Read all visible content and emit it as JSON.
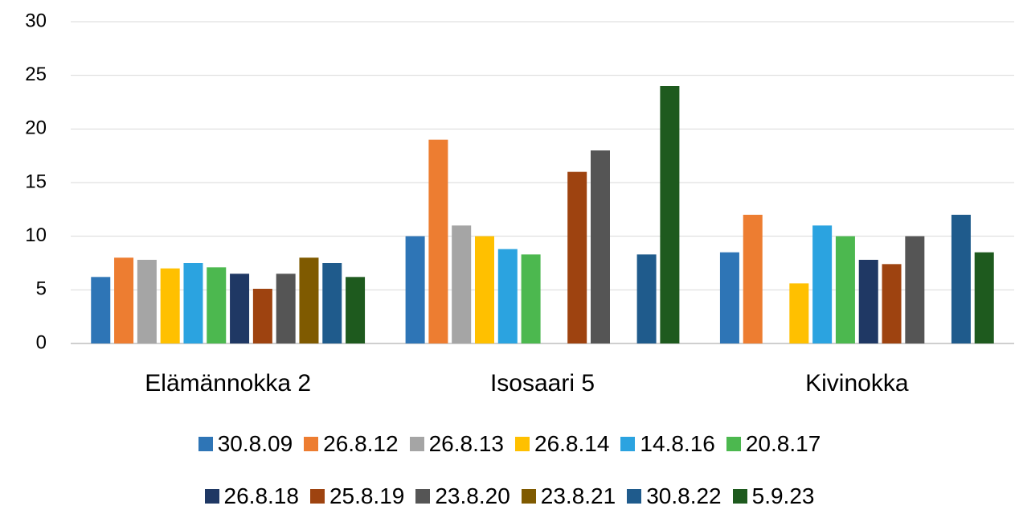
{
  "chart_data": {
    "type": "bar",
    "categories": [
      "Elämännokka 2",
      "Isosaari 5",
      "Kivinokka"
    ],
    "series": [
      {
        "name": "30.8.09",
        "color": "#2e75b6",
        "values": [
          6.2,
          10,
          8.5
        ]
      },
      {
        "name": "26.8.12",
        "color": "#ed7d31",
        "values": [
          8,
          19,
          12
        ]
      },
      {
        "name": "26.8.13",
        "color": "#a5a5a5",
        "values": [
          7.8,
          11,
          null
        ]
      },
      {
        "name": "26.8.14",
        "color": "#ffc000",
        "values": [
          7,
          10,
          5.6
        ]
      },
      {
        "name": "14.8.16",
        "color": "#2ba3e0",
        "values": [
          7.5,
          8.8,
          11
        ]
      },
      {
        "name": "20.8.17",
        "color": "#4cb84f",
        "values": [
          7.1,
          8.3,
          10
        ]
      },
      {
        "name": "26.8.18",
        "color": "#1f3864",
        "values": [
          6.5,
          null,
          7.8
        ]
      },
      {
        "name": "25.8.19",
        "color": "#9e4310",
        "values": [
          5.1,
          16,
          7.4
        ]
      },
      {
        "name": "23.8.20",
        "color": "#555555",
        "values": [
          6.5,
          18,
          10
        ]
      },
      {
        "name": "23.8.21",
        "color": "#7f5a00",
        "values": [
          8,
          null,
          null
        ]
      },
      {
        "name": "30.8.22",
        "color": "#1f5b8c",
        "values": [
          7.5,
          8.3,
          12
        ]
      },
      {
        "name": "5.9.23",
        "color": "#1e5a1e",
        "values": [
          6.2,
          24,
          8.5
        ]
      }
    ],
    "ylim": [
      0,
      30
    ],
    "yticks": [
      0,
      5,
      10,
      15,
      20,
      25,
      30
    ],
    "grid": true,
    "legend": "bottom"
  }
}
